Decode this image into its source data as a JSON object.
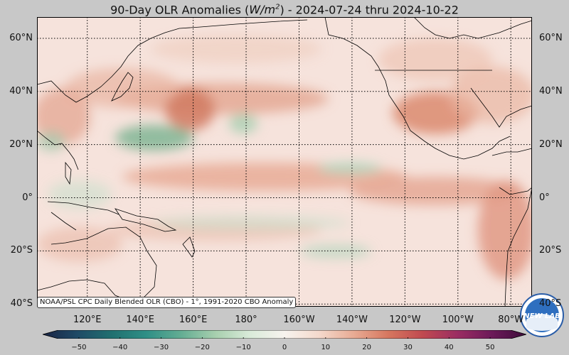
{
  "title": {
    "prefix": "90-Day OLR Anomalies (",
    "unit_base": "W/m",
    "unit_exp": "2",
    "suffix": ") - 2024-07-24 thru 2024-10-22"
  },
  "map": {
    "lat_labels": [
      "60°N",
      "40°N",
      "20°N",
      "0°",
      "20°S",
      "40°S"
    ],
    "lat_values": [
      60,
      40,
      20,
      0,
      -20,
      -40
    ],
    "lon_labels": [
      "120°E",
      "140°E",
      "160°E",
      "180°",
      "160°W",
      "140°W",
      "120°W",
      "100°W",
      "80°W"
    ],
    "lon_values": [
      120,
      140,
      160,
      180,
      200,
      220,
      240,
      260,
      280
    ],
    "extent": {
      "lon_min": 101,
      "lon_max": 288,
      "lat_min": -41,
      "lat_max": 68
    }
  },
  "credit": "NOAA/PSL CPC Daily Blended OLR (CBO) - 1°, 1991-2020 CBO Anomaly",
  "colorbar": {
    "ticks": [
      "−50",
      "−40",
      "−30",
      "−20",
      "−10",
      "0",
      "10",
      "20",
      "30",
      "40",
      "50"
    ],
    "tick_values": [
      -50,
      -40,
      -30,
      -20,
      -10,
      0,
      10,
      20,
      30,
      40,
      50
    ],
    "range": [
      -55,
      55
    ],
    "colors": [
      "#1a2444",
      "#1f4a66",
      "#207070",
      "#2f8f86",
      "#63ad93",
      "#a7cfae",
      "#d9ebd9",
      "#f7f3ee",
      "#f4d9cc",
      "#e8ab94",
      "#d6775f",
      "#c04a50",
      "#9b2d62",
      "#6c1a59",
      "#3d0d3a"
    ]
  },
  "logo": {
    "text": "NEW LAB"
  },
  "colors": {
    "background": "#c8c8c8",
    "ocean_base": "#f6e6e0",
    "coast": "#000000"
  }
}
